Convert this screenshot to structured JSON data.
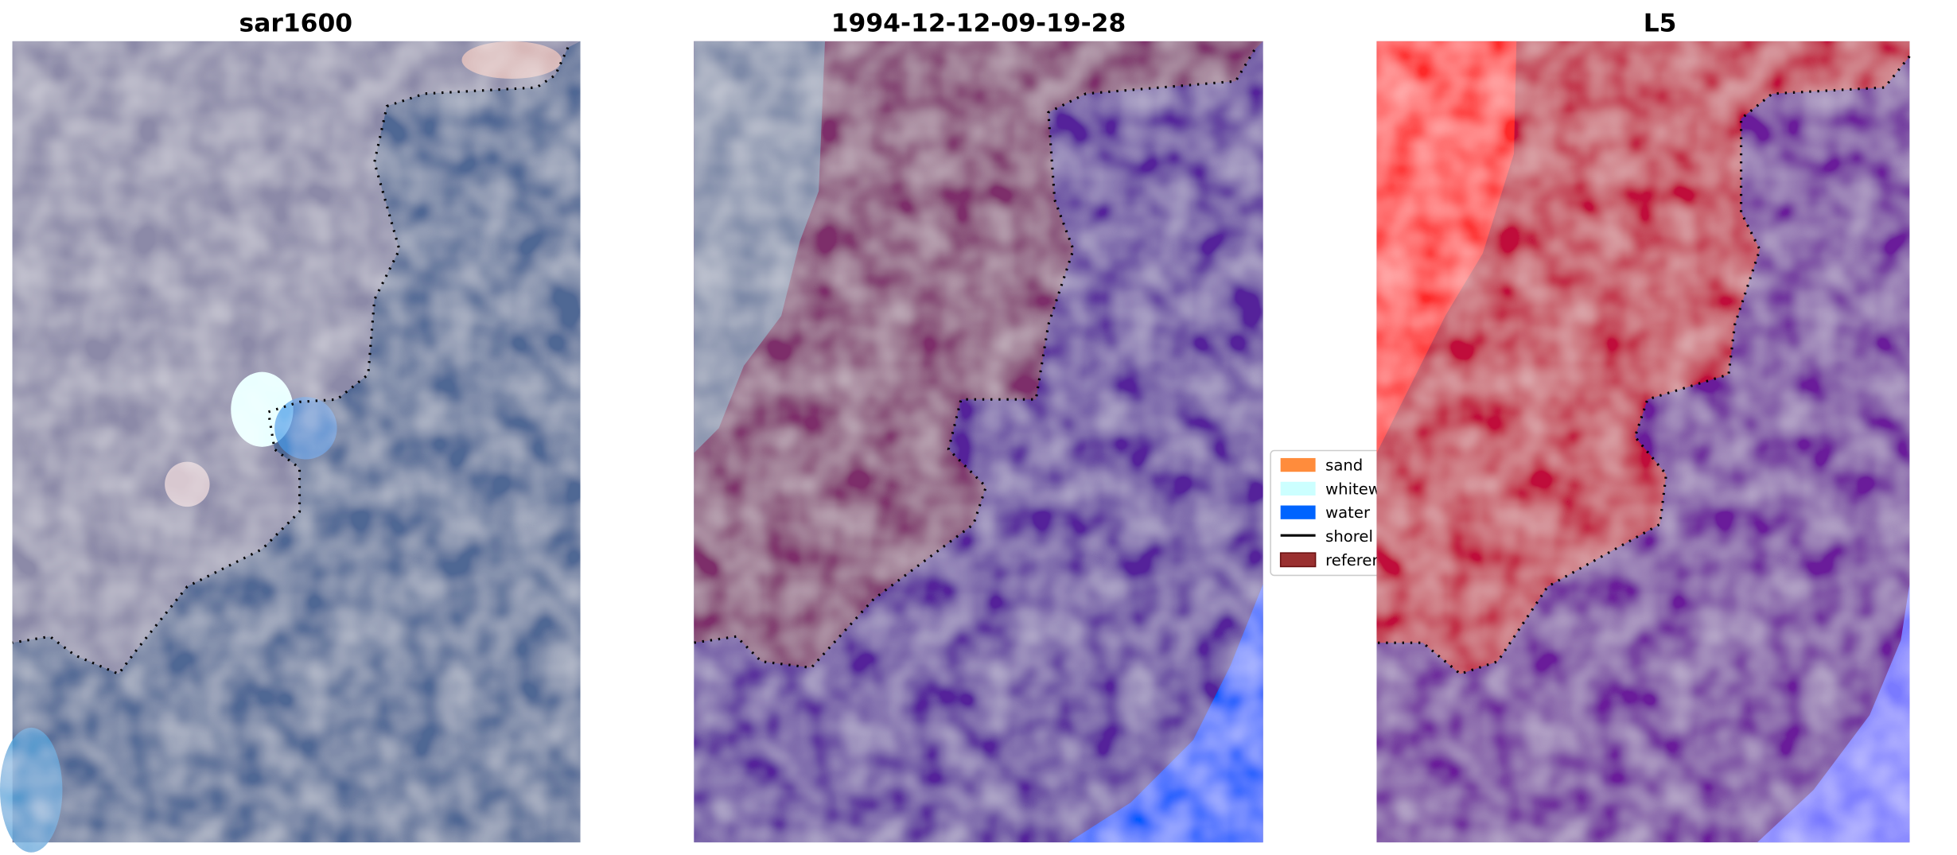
{
  "chart_data": [
    {
      "type": "heatmap",
      "title": "sar1600",
      "axes": "off",
      "shoreline_style": "dotted black"
    },
    {
      "type": "heatmap",
      "title": "1994-12-12-09-19-28",
      "axes": "off",
      "classes_shown": [
        "reference",
        "water"
      ]
    },
    {
      "type": "heatmap",
      "title": "L5",
      "axes": "off"
    }
  ],
  "legend": {
    "placement": "center-right of middle panel (partially hidden)",
    "items": [
      {
        "label": "sand",
        "color": "#ff8c3c",
        "kind": "patch"
      },
      {
        "label": "whitew",
        "color": "#ccffff",
        "kind": "patch"
      },
      {
        "label": "water",
        "color": "#0064ff",
        "kind": "patch"
      },
      {
        "label": "shorel",
        "color": "#000000",
        "kind": "line"
      },
      {
        "label": "referer",
        "color": "#9a3030",
        "kind": "patch"
      }
    ]
  },
  "colors": {
    "land_overlay": "#7d2f6a",
    "water_overlay": "#54229a",
    "water_blue": "#005aff",
    "l5_red": "#ff2a2a",
    "l5_crimson": "#c0103a",
    "l5_purple": "#6a1a9a",
    "l5_blue": "#7a7aff"
  }
}
